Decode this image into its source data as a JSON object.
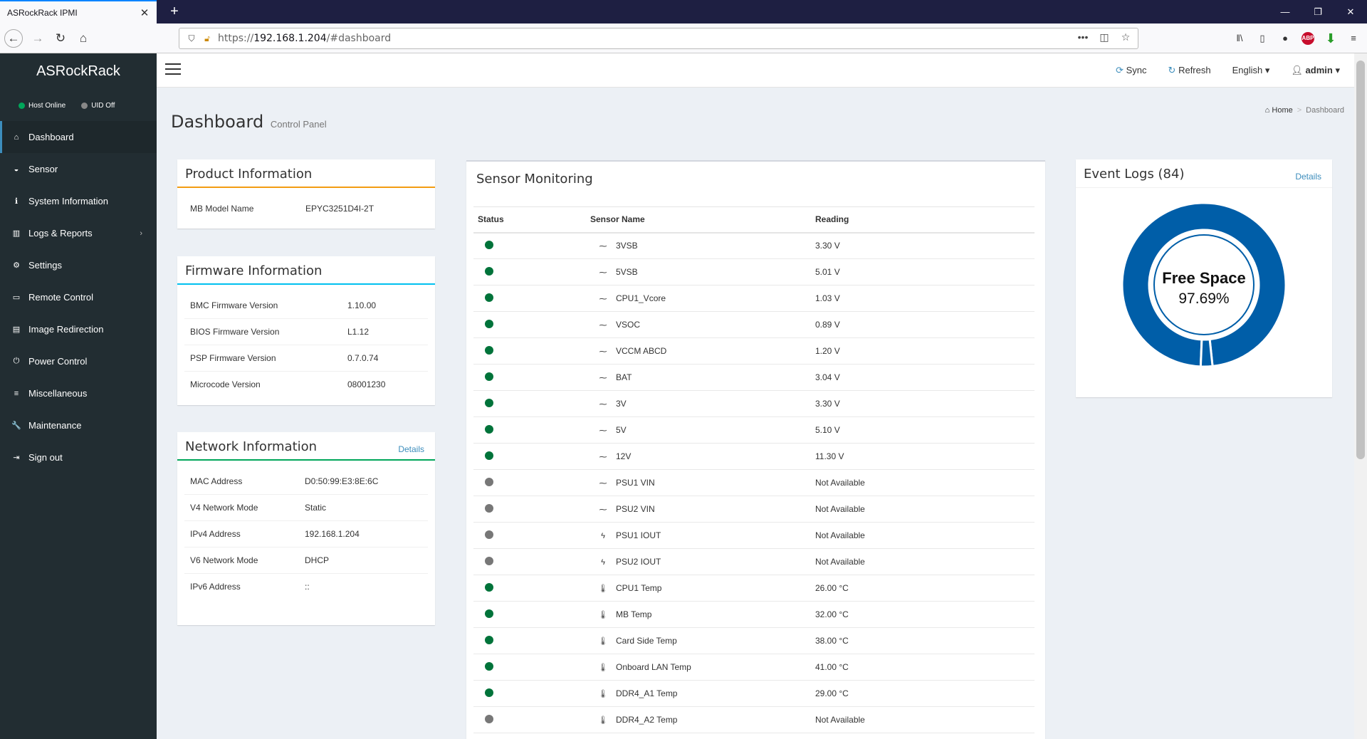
{
  "browser": {
    "tab_title": "ASRockRack IPMI",
    "url_prefix": "https://",
    "url_host": "192.168.1.204",
    "url_path": "/#dashboard"
  },
  "sidebar": {
    "brand": "ASRockRack",
    "status": [
      {
        "label": "Host Online",
        "color": "#00a65a"
      },
      {
        "label": "UID Off",
        "color": "#888888"
      }
    ],
    "items": [
      {
        "label": "Dashboard",
        "icon": "home-icon",
        "glyph": "⌂"
      },
      {
        "label": "Sensor",
        "icon": "dashboard-icon",
        "glyph": "◒"
      },
      {
        "label": "System Information",
        "icon": "info-icon",
        "glyph": "ℹ"
      },
      {
        "label": "Logs & Reports",
        "icon": "bar-chart-icon",
        "glyph": "▥"
      },
      {
        "label": "Settings",
        "icon": "gear-icon",
        "glyph": "⚙"
      },
      {
        "label": "Remote Control",
        "icon": "monitor-icon",
        "glyph": "▭"
      },
      {
        "label": "Image Redirection",
        "icon": "hdd-icon",
        "glyph": "▤"
      },
      {
        "label": "Power Control",
        "icon": "power-icon",
        "glyph": "⏻"
      },
      {
        "label": "Miscellaneous",
        "icon": "list-icon",
        "glyph": "≡"
      },
      {
        "label": "Maintenance",
        "icon": "wrench-icon",
        "glyph": "🔧"
      },
      {
        "label": "Sign out",
        "icon": "sign-out-icon",
        "glyph": "⇥"
      }
    ]
  },
  "header": {
    "sync": "Sync",
    "refresh": "Refresh",
    "language": "English",
    "user": "admin"
  },
  "page": {
    "title": "Dashboard",
    "subtitle": "Control Panel",
    "breadcrumb_home": "Home",
    "breadcrumb_current": "Dashboard"
  },
  "product": {
    "title": "Product Information",
    "accent": "#f39c12",
    "rows": [
      {
        "k": "MB Model Name",
        "v": "EPYC3251D4I-2T"
      }
    ]
  },
  "firmware": {
    "title": "Firmware Information",
    "accent": "#00c0ef",
    "rows": [
      {
        "k": "BMC Firmware Version",
        "v": "1.10.00"
      },
      {
        "k": "BIOS Firmware Version",
        "v": "L1.12"
      },
      {
        "k": "PSP Firmware Version",
        "v": "0.7.0.74"
      },
      {
        "k": "Microcode Version",
        "v": "08001230"
      }
    ]
  },
  "network": {
    "title": "Network Information",
    "details": "Details",
    "accent": "#00a65a",
    "rows": [
      {
        "k": "MAC Address",
        "v": "D0:50:99:E3:8E:6C"
      },
      {
        "k": "V4 Network Mode",
        "v": "Static"
      },
      {
        "k": "IPv4 Address",
        "v": "192.168.1.204"
      },
      {
        "k": "V6 Network Mode",
        "v": "DHCP"
      },
      {
        "k": "IPv6 Address",
        "v": "::"
      }
    ]
  },
  "sensors": {
    "title": "Sensor Monitoring",
    "columns": [
      "Status",
      "Sensor Name",
      "Reading"
    ],
    "rows": [
      {
        "status": "ok",
        "type": "voltage",
        "name": "3VSB",
        "reading": "3.30 V"
      },
      {
        "status": "ok",
        "type": "voltage",
        "name": "5VSB",
        "reading": "5.01 V"
      },
      {
        "status": "ok",
        "type": "voltage",
        "name": "CPU1_Vcore",
        "reading": "1.03 V"
      },
      {
        "status": "ok",
        "type": "voltage",
        "name": "VSOC",
        "reading": "0.89 V"
      },
      {
        "status": "ok",
        "type": "voltage",
        "name": "VCCM ABCD",
        "reading": "1.20 V"
      },
      {
        "status": "ok",
        "type": "voltage",
        "name": "BAT",
        "reading": "3.04 V"
      },
      {
        "status": "ok",
        "type": "voltage",
        "name": "3V",
        "reading": "3.30 V"
      },
      {
        "status": "ok",
        "type": "voltage",
        "name": "5V",
        "reading": "5.10 V"
      },
      {
        "status": "ok",
        "type": "voltage",
        "name": "12V",
        "reading": "11.30 V"
      },
      {
        "status": "na",
        "type": "voltage",
        "name": "PSU1 VIN",
        "reading": "Not Available"
      },
      {
        "status": "na",
        "type": "voltage",
        "name": "PSU2 VIN",
        "reading": "Not Available"
      },
      {
        "status": "na",
        "type": "current",
        "name": "PSU1 IOUT",
        "reading": "Not Available"
      },
      {
        "status": "na",
        "type": "current",
        "name": "PSU2 IOUT",
        "reading": "Not Available"
      },
      {
        "status": "ok",
        "type": "temp",
        "name": "CPU1 Temp",
        "reading": "26.00 °C"
      },
      {
        "status": "ok",
        "type": "temp",
        "name": "MB Temp",
        "reading": "32.00 °C"
      },
      {
        "status": "ok",
        "type": "temp",
        "name": "Card Side Temp",
        "reading": "38.00 °C"
      },
      {
        "status": "ok",
        "type": "temp",
        "name": "Onboard LAN Temp",
        "reading": "41.00 °C"
      },
      {
        "status": "ok",
        "type": "temp",
        "name": "DDR4_A1 Temp",
        "reading": "29.00 °C"
      },
      {
        "status": "na",
        "type": "temp",
        "name": "DDR4_A2 Temp",
        "reading": "Not Available"
      }
    ],
    "status_colors": {
      "ok": "#00733a",
      "na": "#777777"
    }
  },
  "events": {
    "title": "Event Logs (84)",
    "details": "Details",
    "gauge_label": "Free Space",
    "gauge_value": "97.69%",
    "free_fraction": 0.9769,
    "color": "#005ea8"
  }
}
